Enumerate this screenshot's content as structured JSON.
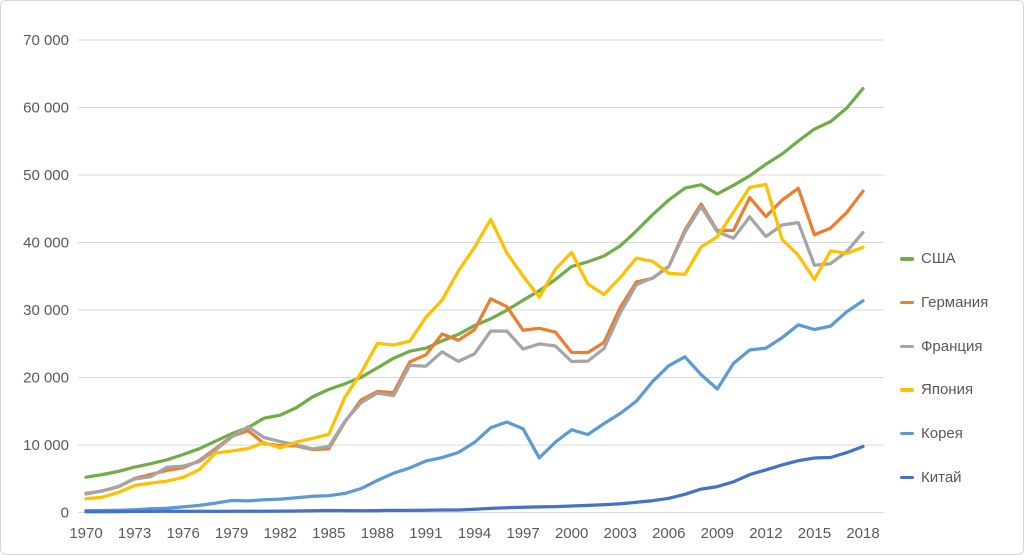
{
  "colors": {
    "background": "#FFFFFF",
    "border": "#D7D7D7",
    "gridline": "#D9D9D9",
    "tick_label": "#595959",
    "legend_label": "#595959"
  },
  "chart_data": {
    "type": "line",
    "grid": "horizontal",
    "legend_position": "right",
    "x_axis": {
      "start_year": 1970,
      "end_year": 2018,
      "data_step_years": 1,
      "tick_step_years": 3
    },
    "x_tick_labels": [
      "1970",
      "1973",
      "1976",
      "1979",
      "1982",
      "1985",
      "1988",
      "1991",
      "1994",
      "1997",
      "2000",
      "2003",
      "2006",
      "2009",
      "2012",
      "2015",
      "2018"
    ],
    "y_axis": {
      "min": 0,
      "max": 70000,
      "grid_step": 10000
    },
    "y_tick_labels": [
      "0",
      "10 000",
      "20 000",
      "30 000",
      "40 000",
      "50 000",
      "60 000",
      "70 000"
    ],
    "series": [
      {
        "key": "usa",
        "name": "США",
        "color": "#70AD47",
        "values": [
          5234,
          5609,
          6094,
          6726,
          7226,
          7801,
          8592,
          9453,
          10565,
          11674,
          12575,
          13976,
          14434,
          15544,
          17121,
          18237,
          19071,
          20039,
          21417,
          22857,
          23889,
          24342,
          25419,
          26387,
          27695,
          28691,
          29968,
          31459,
          32854,
          34514,
          36450,
          37134,
          37998,
          39490,
          41725,
          44123,
          46302,
          48050,
          48570,
          47195,
          48467,
          49883,
          51603,
          53107,
          55033,
          56803,
          57904,
          59928,
          62794
        ]
      },
      {
        "key": "germany",
        "name": "Германия",
        "color": "#ED7D31",
        "values": [
          2761,
          3193,
          3809,
          5046,
          5639,
          6236,
          6634,
          7683,
          9483,
          11283,
          12138,
          10209,
          9914,
          9864,
          9313,
          9430,
          13437,
          16676,
          17931,
          17764,
          22304,
          23358,
          26438,
          25523,
          27077,
          31658,
          30486,
          26998,
          27289,
          26726,
          23719,
          23687,
          25205,
          30360,
          34166,
          34697,
          36448,
          41815,
          45699,
          41733,
          41786,
          46645,
          43858,
          46286,
          48024,
          41140,
          42136,
          44453,
          47603
        ]
      },
      {
        "key": "france",
        "name": "Франция",
        "color": "#A5A5A5",
        "values": [
          2853,
          3163,
          3855,
          4968,
          5317,
          6690,
          6869,
          7527,
          9247,
          11180,
          12713,
          11105,
          10498,
          9993,
          9420,
          9757,
          13524,
          16285,
          17694,
          17300,
          21794,
          21675,
          23814,
          22380,
          23497,
          26890,
          26871,
          24229,
          24974,
          24673,
          22364,
          22434,
          24276,
          29568,
          33741,
          34760,
          36444,
          41508,
          45334,
          41575,
          40638,
          43790,
          40875,
          42592,
          42955,
          36638,
          36854,
          38685,
          41464
        ]
      },
      {
        "key": "japan",
        "name": "Япония",
        "color": "#FFC000",
        "values": [
          2037,
          2272,
          2967,
          3998,
          4354,
          4659,
          5197,
          6336,
          8821,
          9105,
          9465,
          10361,
          9578,
          10425,
          10984,
          11585,
          17112,
          20745,
          25059,
          24813,
          25371,
          28915,
          31465,
          35766,
          39269,
          43440,
          38437,
          35021,
          31902,
          36026,
          38532,
          33846,
          32289,
          34808,
          37688,
          37218,
          35434,
          35275,
          39339,
          40855,
          44508,
          48168,
          48603,
          40454,
          38109,
          34524,
          38762,
          38387,
          39287
        ]
      },
      {
        "key": "korea",
        "name": "Корея",
        "color": "#5B9BD5",
        "values": [
          279,
          301,
          324,
          406,
          563,
          617,
          834,
          1056,
          1400,
          1784,
          1715,
          1883,
          1992,
          2198,
          2413,
          2482,
          2835,
          3555,
          4754,
          5817,
          6610,
          7637,
          8127,
          8882,
          10385,
          12565,
          13403,
          12398,
          8085,
          10432,
          12257,
          11561,
          13165,
          14673,
          16496,
          19403,
          21743,
          23061,
          20431,
          18292,
          22087,
          24080,
          24359,
          25890,
          27811,
          27105,
          27608,
          29743,
          31363
        ]
      },
      {
        "key": "china",
        "name": "Китай",
        "color": "#4472C4",
        "values": [
          113,
          119,
          132,
          157,
          160,
          178,
          165,
          185,
          156,
          184,
          195,
          197,
          203,
          225,
          250,
          294,
          282,
          252,
          284,
          311,
          318,
          333,
          366,
          377,
          473,
          610,
          709,
          782,
          829,
          873,
          959,
          1053,
          1149,
          1289,
          1509,
          1753,
          2099,
          2694,
          3468,
          3832,
          4550,
          5618,
          6317,
          7051,
          7679,
          8067,
          8148,
          8879,
          9771
        ]
      }
    ]
  }
}
